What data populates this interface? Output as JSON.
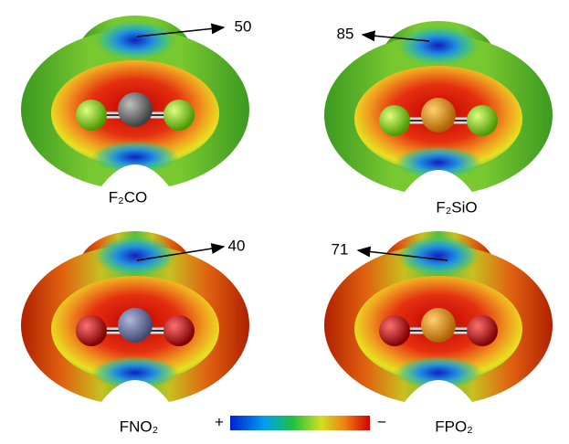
{
  "panels": [
    {
      "label": "F₂CO",
      "value": 50
    },
    {
      "label": "F₂SiO",
      "value": 85
    },
    {
      "label": "FNO₂",
      "value": 40
    },
    {
      "label": "FPO₂",
      "value": 71
    }
  ],
  "colorbar": {
    "plus": "+",
    "minus": "−"
  }
}
